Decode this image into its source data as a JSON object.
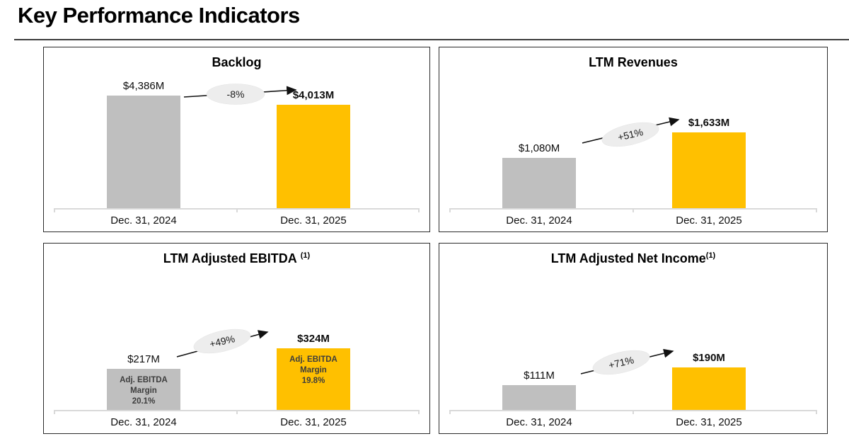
{
  "page": {
    "title": "Key Performance Indicators"
  },
  "colors": {
    "bar_prior": "#BFBFBF",
    "bar_current": "#FFC000",
    "ellipse_fill": "#EDEDED",
    "axis": "#D9D9D9",
    "arrow": "#111111"
  },
  "chart_data": [
    {
      "id": "backlog",
      "type": "bar",
      "title": "Backlog",
      "title_superscript": "",
      "title_sup_space": false,
      "categories": [
        "Dec. 31, 2024",
        "Dec. 31, 2025"
      ],
      "values": [
        4386,
        4013
      ],
      "value_labels": [
        "$4,386M",
        "$4,013M"
      ],
      "change_label": "-8%",
      "bar_annotations": [
        null,
        null
      ],
      "bar_colors": [
        "#BFBFBF",
        "#FFC000"
      ],
      "unit": "USD millions",
      "ylim": [
        0,
        5100
      ],
      "grid": false,
      "legend": false
    },
    {
      "id": "ltm-revenues",
      "type": "bar",
      "title": "LTM Revenues",
      "title_superscript": "",
      "title_sup_space": false,
      "categories": [
        "Dec. 31, 2024",
        "Dec. 31, 2025"
      ],
      "values": [
        1080,
        1633
      ],
      "value_labels": [
        "$1,080M",
        "$1,633M"
      ],
      "change_label": "+51%",
      "bar_annotations": [
        null,
        null
      ],
      "bar_colors": [
        "#BFBFBF",
        "#FFC000"
      ],
      "unit": "USD millions",
      "ylim": [
        0,
        2820
      ],
      "grid": false,
      "legend": false
    },
    {
      "id": "ltm-adjusted-ebitda",
      "type": "bar",
      "title": "LTM Adjusted EBITDA",
      "title_superscript": "(1)",
      "title_sup_space": true,
      "categories": [
        "Dec. 31, 2024",
        "Dec. 31, 2025"
      ],
      "values": [
        217,
        324
      ],
      "value_labels": [
        "$217M",
        "$324M"
      ],
      "change_label": "+49%",
      "bar_annotations": [
        [
          "Adj. EBITDA",
          "Margin",
          "20.1%"
        ],
        [
          "Adj. EBITDA",
          "Margin",
          "19.8%"
        ]
      ],
      "bar_colors": [
        "#BFBFBF",
        "#FFC000"
      ],
      "unit": "USD millions",
      "ylim": [
        0,
        720
      ],
      "grid": false,
      "legend": false
    },
    {
      "id": "ltm-adjusted-net-income",
      "type": "bar",
      "title": "LTM Adjusted Net Income",
      "title_superscript": "(1)",
      "title_sup_space": false,
      "categories": [
        "Dec. 31, 2024",
        "Dec. 31, 2025"
      ],
      "values": [
        111,
        190
      ],
      "value_labels": [
        "$111M",
        "$190M"
      ],
      "change_label": "+71%",
      "bar_annotations": [
        null,
        null
      ],
      "bar_colors": [
        "#BFBFBF",
        "#FFC000"
      ],
      "unit": "USD millions",
      "ylim": [
        0,
        610
      ],
      "grid": false,
      "legend": false
    }
  ]
}
